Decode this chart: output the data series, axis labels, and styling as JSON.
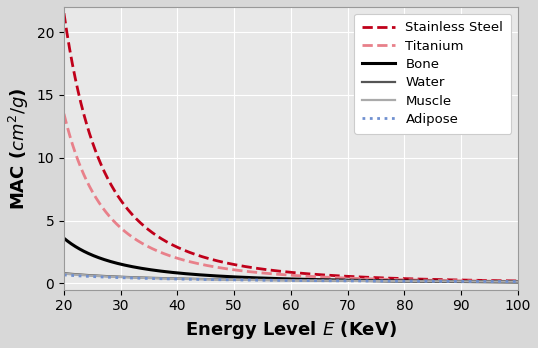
{
  "title": "",
  "xlabel": "Energy Level $E$ (KeV)",
  "ylabel": "MAC ($cm^2/g$)",
  "xlim": [
    20,
    100
  ],
  "ylim": [
    -0.5,
    22
  ],
  "yticks": [
    0,
    5,
    10,
    15,
    20
  ],
  "xticks": [
    20,
    30,
    40,
    50,
    60,
    70,
    80,
    90,
    100
  ],
  "plot_bg_color": "#e8e8e8",
  "fig_bg_color": "#d8d8d8",
  "series": {
    "Stainless Steel": {
      "color": "#c0001a",
      "linestyle": "--",
      "linewidth": 2.0,
      "mac_at_20": 21.5,
      "exponent": 2.9
    },
    "Titanium": {
      "color": "#e8808a",
      "linestyle": "--",
      "linewidth": 2.0,
      "mac_at_20": 13.5,
      "exponent": 2.75
    },
    "Bone": {
      "color": "#000000",
      "linestyle": "-",
      "linewidth": 2.2,
      "mac_at_20": 3.6,
      "exponent": 2.1
    },
    "Water": {
      "color": "#555555",
      "linestyle": "-",
      "linewidth": 1.6,
      "mac_at_20": 0.82,
      "exponent": 1.05
    },
    "Muscle": {
      "color": "#aaaaaa",
      "linestyle": "-",
      "linewidth": 1.6,
      "mac_at_20": 0.78,
      "exponent": 1.05
    },
    "Adipose": {
      "color": "#7090d0",
      "linestyle": ":",
      "linewidth": 2.0,
      "mac_at_20": 0.68,
      "exponent": 0.95
    }
  },
  "legend_loc": "upper right",
  "legend_fontsize": 9.5,
  "axis_label_fontsize": 13,
  "tick_fontsize": 10
}
